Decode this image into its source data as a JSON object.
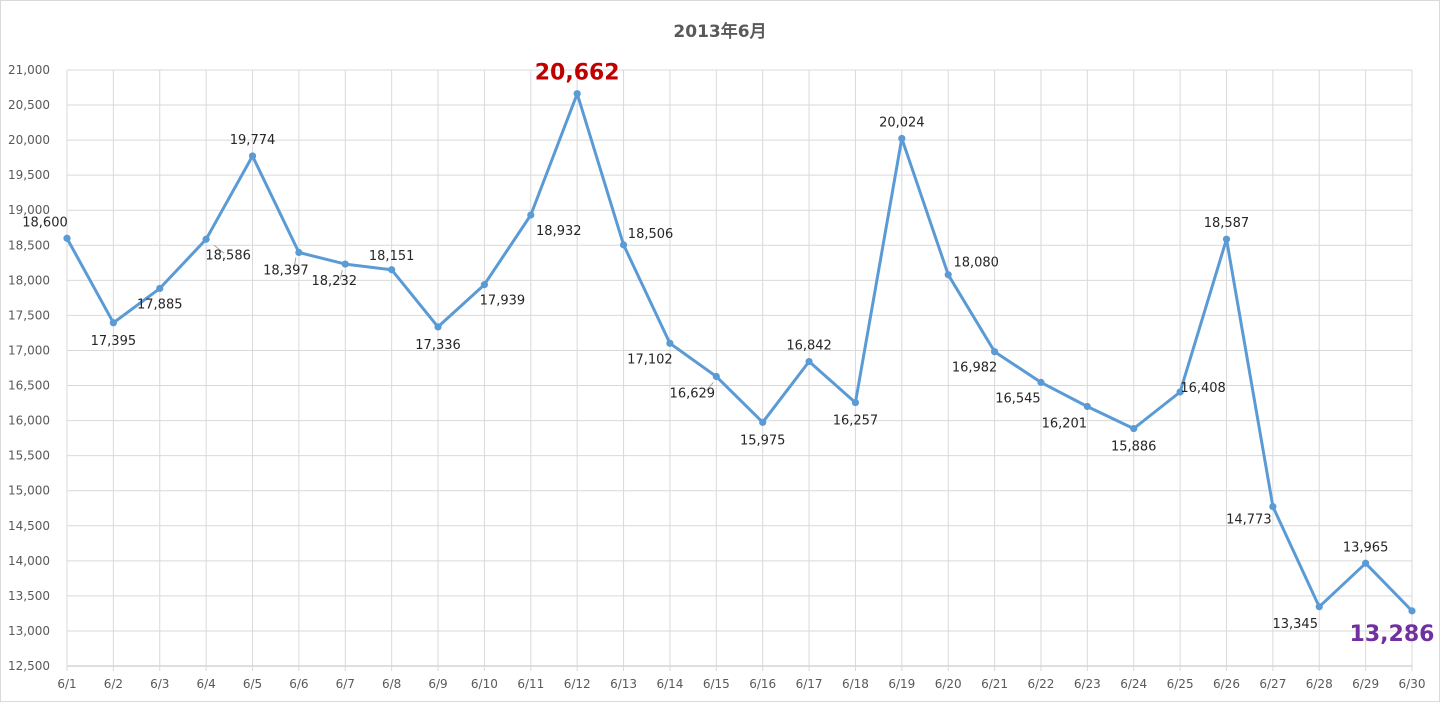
{
  "chart_data": {
    "type": "line",
    "title": "2013年6月",
    "categories": [
      "6/1",
      "6/2",
      "6/3",
      "6/4",
      "6/5",
      "6/6",
      "6/7",
      "6/8",
      "6/9",
      "6/10",
      "6/11",
      "6/12",
      "6/13",
      "6/14",
      "6/15",
      "6/16",
      "6/17",
      "6/18",
      "6/19",
      "6/20",
      "6/21",
      "6/22",
      "6/23",
      "6/24",
      "6/25",
      "6/26",
      "6/27",
      "6/28",
      "6/29",
      "6/30"
    ],
    "series": [
      {
        "values": [
          18600,
          17395,
          17885,
          18586,
          19774,
          18397,
          18232,
          18151,
          17336,
          17939,
          18932,
          20662,
          18506,
          17102,
          16629,
          15975,
          16842,
          16257,
          20024,
          18080,
          16982,
          16545,
          16201,
          15886,
          16408,
          18587,
          14773,
          13345,
          13965,
          13286
        ],
        "value_labels": [
          "18,600",
          "17,395",
          "17,885",
          "18,586",
          "19,774",
          "18,397",
          "18,232",
          "18,151",
          "17,336",
          "17,939",
          "18,932",
          "20,662",
          "18,506",
          "17,102",
          "16,629",
          "15,975",
          "16,842",
          "16,257",
          "20,024",
          "18,080",
          "16,982",
          "16,545",
          "16,201",
          "15,886",
          "16,408",
          "18,587",
          "14,773",
          "13,345",
          "13,965",
          "13,286"
        ],
        "color": "#5b9bd5"
      }
    ],
    "y_ticks": [
      "12,500",
      "13,000",
      "13,500",
      "14,000",
      "14,500",
      "15,000",
      "15,500",
      "16,000",
      "16,500",
      "17,000",
      "17,500",
      "18,000",
      "18,500",
      "19,000",
      "19,500",
      "20,000",
      "20,500",
      "21,000"
    ],
    "ylim": [
      12500,
      21000
    ],
    "y_step": 500,
    "grid": true,
    "xlabel": "",
    "ylabel": "",
    "highlight": {
      "max_color": "#c00000",
      "last_color": "#7030a0"
    }
  }
}
